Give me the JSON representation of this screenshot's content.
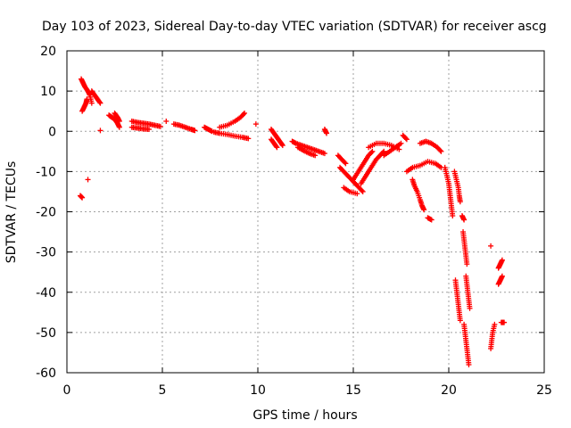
{
  "chart_data": {
    "type": "scatter",
    "title": "Day 103 of 2023, Sidereal Day-to-day VTEC variation (SDTVAR) for receiver ascg",
    "xlabel": "GPS time / hours",
    "ylabel": "SDTVAR / TECUs",
    "xlim": [
      0,
      25
    ],
    "ylim": [
      -60,
      20
    ],
    "grid": true,
    "marker": "plus",
    "marker_color": "#ff0000",
    "x_ticks": [
      0,
      5,
      10,
      15,
      20,
      25
    ],
    "x_tick_labels": [
      "0",
      "5",
      "10",
      "15",
      "20",
      "25"
    ],
    "y_ticks": [
      -60,
      -50,
      -40,
      -30,
      -20,
      -10,
      0,
      10,
      20
    ],
    "y_tick_labels": [
      "-60",
      "-50",
      "-40",
      "-30",
      "-20",
      "-10",
      "0",
      "10",
      "20"
    ],
    "segments": [
      [
        [
          0.75,
          13
        ],
        [
          0.85,
          12
        ],
        [
          0.95,
          11
        ],
        [
          1.1,
          10
        ],
        [
          1.2,
          9
        ],
        [
          1.3,
          7
        ]
      ],
      [
        [
          0.8,
          5
        ],
        [
          0.9,
          6
        ],
        [
          1.0,
          7
        ],
        [
          1.05,
          8
        ]
      ],
      [
        [
          1.3,
          10
        ],
        [
          1.45,
          9
        ],
        [
          1.6,
          8
        ],
        [
          1.75,
          7
        ]
      ],
      [
        [
          2.2,
          4
        ],
        [
          2.35,
          3.5
        ],
        [
          2.5,
          3
        ],
        [
          2.65,
          2
        ],
        [
          2.75,
          1
        ]
      ],
      [
        [
          2.5,
          4.5
        ],
        [
          2.65,
          3.5
        ],
        [
          2.75,
          2.5
        ]
      ],
      [
        [
          3.4,
          2.5
        ],
        [
          3.7,
          2.2
        ],
        [
          4.0,
          2
        ],
        [
          4.3,
          1.8
        ],
        [
          4.6,
          1.5
        ],
        [
          4.9,
          1.2
        ]
      ],
      [
        [
          3.4,
          1
        ],
        [
          3.7,
          0.8
        ],
        [
          4.0,
          0.6
        ],
        [
          4.3,
          0.5
        ]
      ],
      [
        [
          5.6,
          1.8
        ],
        [
          5.9,
          1.5
        ],
        [
          6.2,
          1
        ],
        [
          6.5,
          0.5
        ],
        [
          6.7,
          0.2
        ]
      ],
      [
        [
          7.2,
          1
        ],
        [
          7.4,
          0.5
        ],
        [
          7.6,
          0
        ]
      ],
      [
        [
          7.7,
          -0.2
        ],
        [
          8.0,
          -0.5
        ],
        [
          8.4,
          -0.8
        ],
        [
          8.8,
          -1.2
        ],
        [
          9.2,
          -1.5
        ],
        [
          9.5,
          -1.8
        ]
      ],
      [
        [
          8.0,
          1
        ],
        [
          8.4,
          1.5
        ],
        [
          8.8,
          2.5
        ],
        [
          9.1,
          3.5
        ],
        [
          9.3,
          4.5
        ]
      ],
      [
        [
          10.7,
          0.5
        ],
        [
          10.85,
          -0.5
        ],
        [
          11.0,
          -1.5
        ],
        [
          11.15,
          -2.5
        ],
        [
          11.3,
          -3.5
        ]
      ],
      [
        [
          10.7,
          -2
        ],
        [
          10.85,
          -3
        ],
        [
          11.0,
          -4
        ]
      ],
      [
        [
          11.8,
          -2.5
        ],
        [
          12.0,
          -3
        ],
        [
          12.3,
          -3.5
        ],
        [
          12.6,
          -4
        ],
        [
          12.9,
          -4.5
        ],
        [
          13.2,
          -5
        ],
        [
          13.5,
          -5.5
        ]
      ],
      [
        [
          12.1,
          -4
        ],
        [
          12.4,
          -4.8
        ],
        [
          12.7,
          -5.5
        ],
        [
          13.0,
          -6
        ]
      ],
      [
        [
          13.5,
          0.5
        ],
        [
          13.6,
          -0.5
        ]
      ],
      [
        [
          14.2,
          -6
        ],
        [
          14.4,
          -7
        ],
        [
          14.6,
          -8
        ]
      ],
      [
        [
          14.3,
          -9
        ],
        [
          14.5,
          -10
        ],
        [
          14.7,
          -11
        ],
        [
          14.9,
          -12
        ],
        [
          15.1,
          -13
        ],
        [
          15.3,
          -14
        ],
        [
          15.5,
          -15
        ]
      ],
      [
        [
          14.5,
          -14
        ],
        [
          14.8,
          -15
        ],
        [
          15.2,
          -15.5
        ]
      ],
      [
        [
          15.0,
          -12
        ],
        [
          15.2,
          -10.5
        ],
        [
          15.4,
          -9
        ],
        [
          15.6,
          -7.5
        ],
        [
          15.8,
          -6
        ],
        [
          16.0,
          -5
        ]
      ],
      [
        [
          15.4,
          -13
        ],
        [
          15.6,
          -11.5
        ],
        [
          15.8,
          -10
        ],
        [
          16.0,
          -8.5
        ],
        [
          16.2,
          -7
        ],
        [
          16.4,
          -6
        ],
        [
          16.6,
          -5
        ]
      ],
      [
        [
          15.8,
          -4
        ],
        [
          16.2,
          -3
        ],
        [
          16.6,
          -3
        ],
        [
          17.0,
          -3.5
        ],
        [
          17.4,
          -4.5
        ]
      ],
      [
        [
          16.6,
          -6
        ],
        [
          16.9,
          -5
        ],
        [
          17.2,
          -4
        ],
        [
          17.5,
          -3
        ]
      ],
      [
        [
          17.6,
          -1
        ],
        [
          17.8,
          -2
        ]
      ],
      [
        [
          17.8,
          -10
        ],
        [
          18.1,
          -9
        ],
        [
          18.5,
          -8.5
        ],
        [
          18.9,
          -7.5
        ],
        [
          19.3,
          -8
        ],
        [
          19.6,
          -9
        ]
      ],
      [
        [
          18.1,
          -12
        ],
        [
          18.2,
          -13.5
        ],
        [
          18.35,
          -15
        ],
        [
          18.5,
          -17
        ],
        [
          18.6,
          -18.5
        ],
        [
          18.7,
          -19.5
        ]
      ],
      [
        [
          18.5,
          -3
        ],
        [
          18.8,
          -2.5
        ],
        [
          19.1,
          -3
        ],
        [
          19.4,
          -4
        ],
        [
          19.6,
          -5
        ]
      ],
      [
        [
          18.9,
          -21.5
        ],
        [
          19.1,
          -22
        ]
      ],
      [
        [
          19.8,
          -9
        ],
        [
          19.9,
          -11
        ],
        [
          20.0,
          -13
        ],
        [
          20.05,
          -15
        ],
        [
          20.1,
          -17
        ],
        [
          20.15,
          -19
        ],
        [
          20.2,
          -21
        ]
      ],
      [
        [
          20.3,
          -10
        ],
        [
          20.4,
          -12
        ],
        [
          20.5,
          -14
        ],
        [
          20.55,
          -16
        ],
        [
          20.6,
          -17.5
        ]
      ],
      [
        [
          20.35,
          -37
        ],
        [
          20.4,
          -39
        ],
        [
          20.45,
          -41
        ],
        [
          20.5,
          -43
        ],
        [
          20.55,
          -45
        ],
        [
          20.6,
          -47
        ]
      ],
      [
        [
          20.7,
          -21
        ],
        [
          20.8,
          -22
        ]
      ],
      [
        [
          20.75,
          -25
        ],
        [
          20.8,
          -27
        ],
        [
          20.85,
          -29
        ],
        [
          20.9,
          -31
        ],
        [
          20.95,
          -33
        ]
      ],
      [
        [
          20.8,
          -48
        ],
        [
          20.85,
          -50
        ],
        [
          20.9,
          -52
        ],
        [
          20.95,
          -54
        ],
        [
          21.0,
          -56
        ],
        [
          21.05,
          -58
        ]
      ],
      [
        [
          20.9,
          -36
        ],
        [
          20.95,
          -38
        ],
        [
          21.0,
          -40
        ],
        [
          21.05,
          -42
        ],
        [
          21.1,
          -44
        ]
      ],
      [
        [
          22.2,
          -28.5
        ]
      ],
      [
        [
          22.2,
          -54
        ],
        [
          22.25,
          -52
        ],
        [
          22.3,
          -50
        ],
        [
          22.4,
          -48
        ]
      ],
      [
        [
          22.6,
          -38
        ],
        [
          22.7,
          -37
        ],
        [
          22.8,
          -36
        ]
      ],
      [
        [
          22.6,
          -34
        ],
        [
          22.7,
          -33
        ],
        [
          22.8,
          -32
        ]
      ],
      [
        [
          22.75,
          -47.5
        ],
        [
          22.9,
          -47.5
        ]
      ],
      [
        [
          0.7,
          -16
        ],
        [
          0.8,
          -16.5
        ]
      ],
      [
        [
          1.1,
          -12
        ]
      ],
      [
        [
          1.75,
          0.2
        ]
      ],
      [
        [
          5.2,
          2.5
        ]
      ],
      [
        [
          9.9,
          1.8
        ]
      ]
    ]
  }
}
